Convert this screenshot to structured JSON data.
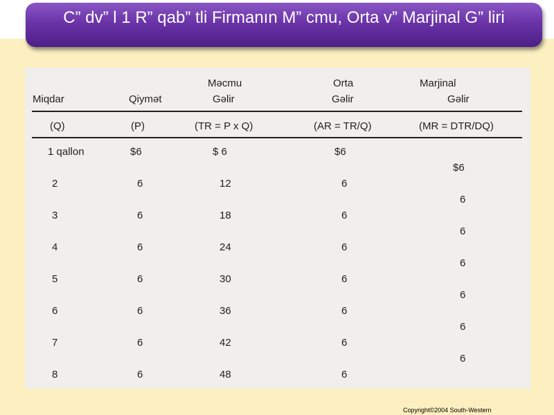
{
  "slide": {
    "title": "C” dv” l 1 R” qab” tli Firmanın M” cmu, Orta v”  Marjinal G” liri",
    "copyright": "Copyright©2004  South-Western"
  },
  "table": {
    "header_top": {
      "total": "Məcmu",
      "average": "Orta",
      "marginal": "Marjinal"
    },
    "header_main": {
      "quantity": "Miqdar",
      "price": "Qiymət",
      "total": "Gəlir",
      "average": "Gəlir",
      "marginal": "Gəlir"
    },
    "header_symbols": {
      "quantity": "(Q)",
      "price": "(P)",
      "total": "(TR = P x Q)",
      "average": "(AR = TR/Q)",
      "marginal": "(MR = DTR/DQ)"
    },
    "rows": [
      {
        "q": "1 qallon",
        "p": "$6",
        "tr": "$  6",
        "ar": "$6"
      },
      {
        "q": "2",
        "p": "6",
        "tr": "12",
        "ar": "6"
      },
      {
        "q": "3",
        "p": "6",
        "tr": "18",
        "ar": "6"
      },
      {
        "q": "4",
        "p": "6",
        "tr": "24",
        "ar": "6"
      },
      {
        "q": "5",
        "p": "6",
        "tr": "30",
        "ar": "6"
      },
      {
        "q": "6",
        "p": "6",
        "tr": "36",
        "ar": "6"
      },
      {
        "q": "7",
        "p": "6",
        "tr": "42",
        "ar": "6"
      },
      {
        "q": "8",
        "p": "6",
        "tr": "48",
        "ar": "6"
      }
    ],
    "marginal": [
      "$6",
      "6",
      "6",
      "6",
      "6",
      "6",
      "6"
    ]
  }
}
